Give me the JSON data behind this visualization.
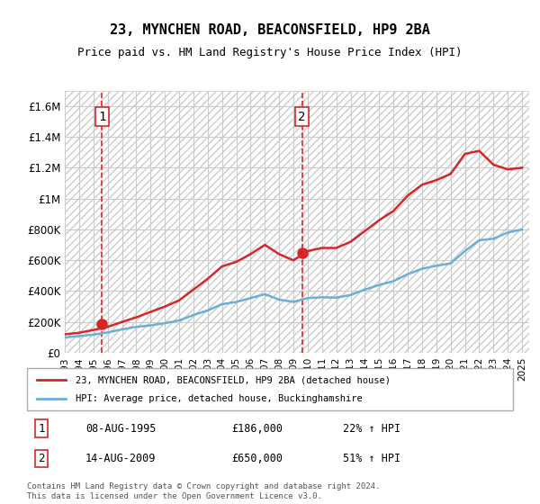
{
  "title": "23, MYNCHEN ROAD, BEACONSFIELD, HP9 2BA",
  "subtitle": "Price paid vs. HM Land Registry's House Price Index (HPI)",
  "legend_line1": "23, MYNCHEN ROAD, BEACONSFIELD, HP9 2BA (detached house)",
  "legend_line2": "HPI: Average price, detached house, Buckinghamshire",
  "footnote": "Contains HM Land Registry data © Crown copyright and database right 2024.\nThis data is licensed under the Open Government Licence v3.0.",
  "transaction1_label": "1",
  "transaction1_date": "08-AUG-1995",
  "transaction1_price": "£186,000",
  "transaction1_hpi": "22% ↑ HPI",
  "transaction2_label": "2",
  "transaction2_date": "14-AUG-2009",
  "transaction2_price": "£650,000",
  "transaction2_hpi": "51% ↑ HPI",
  "hpi_color": "#6baed6",
  "price_color": "#d62728",
  "marker_color": "#d62728",
  "dashed_line_color": "#d62728",
  "background_hatch_color": "#d3d3d3",
  "ylim": [
    0,
    1700000
  ],
  "yticks": [
    0,
    200000,
    400000,
    600000,
    800000,
    1000000,
    1200000,
    1400000,
    1600000
  ],
  "ytick_labels": [
    "£0",
    "£200K",
    "£400K",
    "£600K",
    "£800K",
    "£1M",
    "£1.2M",
    "£1.4M",
    "£1.6M"
  ],
  "transaction1_year": 1995.6,
  "transaction2_year": 2009.6,
  "transaction1_price_val": 186000,
  "transaction2_price_val": 650000,
  "hpi_years": [
    1993,
    1994,
    1995,
    1996,
    1997,
    1998,
    1999,
    2000,
    2001,
    2002,
    2003,
    2004,
    2005,
    2006,
    2007,
    2008,
    2009,
    2010,
    2011,
    2012,
    2013,
    2014,
    2015,
    2016,
    2017,
    2018,
    2019,
    2020,
    2021,
    2022,
    2023,
    2024,
    2025
  ],
  "hpi_values": [
    100000,
    108000,
    118000,
    132000,
    152000,
    168000,
    178000,
    192000,
    210000,
    245000,
    275000,
    315000,
    330000,
    355000,
    380000,
    345000,
    330000,
    355000,
    360000,
    358000,
    375000,
    410000,
    440000,
    465000,
    510000,
    545000,
    565000,
    580000,
    660000,
    730000,
    740000,
    780000,
    800000
  ],
  "price_years": [
    1993,
    1994,
    1995,
    1996,
    1997,
    1998,
    1999,
    2000,
    2001,
    2002,
    2003,
    2004,
    2005,
    2006,
    2007,
    2008,
    2009,
    2010,
    2011,
    2012,
    2013,
    2014,
    2015,
    2016,
    2017,
    2018,
    2019,
    2020,
    2021,
    2022,
    2023,
    2024,
    2025
  ],
  "price_values": [
    120000,
    130000,
    148000,
    168000,
    200000,
    230000,
    265000,
    300000,
    340000,
    410000,
    480000,
    560000,
    590000,
    640000,
    700000,
    640000,
    600000,
    660000,
    680000,
    680000,
    720000,
    790000,
    860000,
    920000,
    1020000,
    1090000,
    1120000,
    1160000,
    1290000,
    1310000,
    1220000,
    1190000,
    1200000
  ],
  "xmin": 1993,
  "xmax": 2025.5
}
